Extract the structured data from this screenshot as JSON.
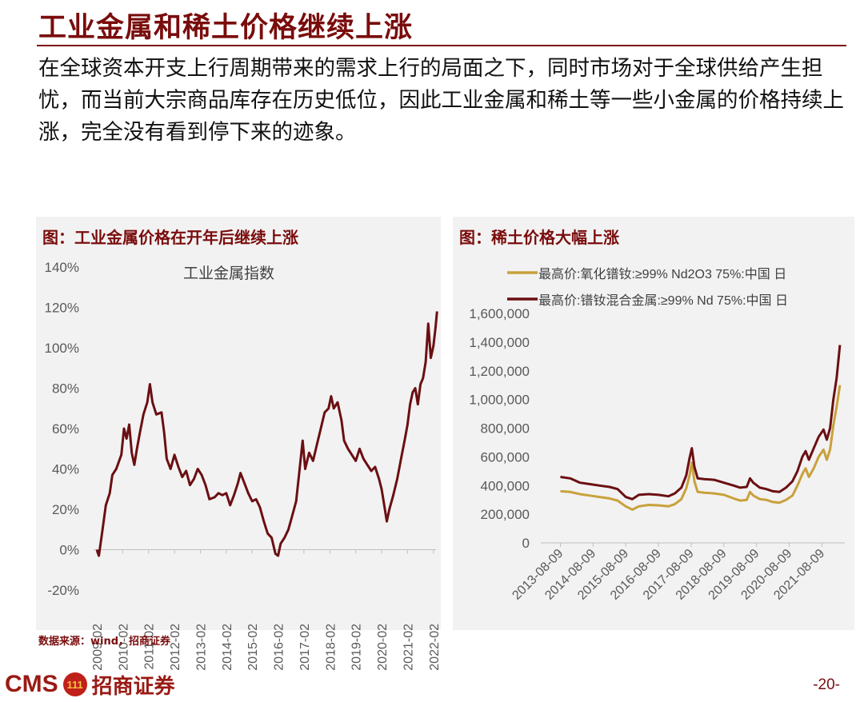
{
  "page": {
    "title": "工业金属和稀土价格继续上涨",
    "body": "在全球资本开支上行周期带来的需求上行的局面之下，同时市场对于全球供给产生担忧，而当前大宗商品库存在历史低位，因此工业金属和稀土等一些小金属的价格持续上涨，完全没有看到停下来的迹象。",
    "source": "数据来源：wind，招商证券",
    "page_number": "-20-"
  },
  "logo": {
    "cms": "CMS",
    "badge": "111",
    "cn": "招商证券"
  },
  "colors": {
    "accent": "#7a0c0c",
    "series_gold": "#c9a13b",
    "series_maroon": "#6b0f12",
    "panel_bg": "#f2f2f2"
  },
  "chart_data": [
    {
      "type": "line",
      "title": "图：工业金属价格在开年后继续上涨",
      "annotation": "工业金属指数",
      "x_ticks": [
        "2009-02",
        "2010-02",
        "2011-02",
        "2012-02",
        "2013-02",
        "2014-02",
        "2015-02",
        "2016-02",
        "2017-02",
        "2018-02",
        "2019-02",
        "2020-02",
        "2021-02",
        "2022-02"
      ],
      "y_ticks": [
        "140%",
        "120%",
        "100%",
        "80%",
        "60%",
        "40%",
        "20%",
        "0%",
        "-20%"
      ],
      "ylim": [
        -20,
        140
      ],
      "grid": false,
      "series": [
        {
          "points": [
            [
              2009.0,
              0
            ],
            [
              2009.08,
              -3
            ],
            [
              2009.2,
              8
            ],
            [
              2009.35,
              22
            ],
            [
              2009.5,
              28
            ],
            [
              2009.6,
              37
            ],
            [
              2009.75,
              40
            ],
            [
              2009.95,
              47
            ],
            [
              2010.05,
              60
            ],
            [
              2010.15,
              55
            ],
            [
              2010.25,
              62
            ],
            [
              2010.35,
              48
            ],
            [
              2010.45,
              42
            ],
            [
              2010.55,
              50
            ],
            [
              2010.65,
              57
            ],
            [
              2010.8,
              67
            ],
            [
              2010.95,
              73
            ],
            [
              2011.05,
              82
            ],
            [
              2011.15,
              73
            ],
            [
              2011.3,
              67
            ],
            [
              2011.5,
              68
            ],
            [
              2011.6,
              58
            ],
            [
              2011.7,
              45
            ],
            [
              2011.85,
              40
            ],
            [
              2012.0,
              47
            ],
            [
              2012.15,
              41
            ],
            [
              2012.3,
              36
            ],
            [
              2012.45,
              39
            ],
            [
              2012.6,
              32
            ],
            [
              2012.75,
              35
            ],
            [
              2012.9,
              40
            ],
            [
              2013.05,
              37
            ],
            [
              2013.2,
              32
            ],
            [
              2013.35,
              25
            ],
            [
              2013.55,
              26
            ],
            [
              2013.7,
              28
            ],
            [
              2013.85,
              27
            ],
            [
              2014.0,
              28
            ],
            [
              2014.15,
              22
            ],
            [
              2014.3,
              27
            ],
            [
              2014.45,
              33
            ],
            [
              2014.55,
              38
            ],
            [
              2014.7,
              33
            ],
            [
              2014.85,
              28
            ],
            [
              2015.0,
              24
            ],
            [
              2015.15,
              25
            ],
            [
              2015.3,
              21
            ],
            [
              2015.45,
              14
            ],
            [
              2015.6,
              8
            ],
            [
              2015.75,
              6
            ],
            [
              2015.9,
              -2
            ],
            [
              2016.0,
              -3
            ],
            [
              2016.1,
              3
            ],
            [
              2016.25,
              6
            ],
            [
              2016.4,
              10
            ],
            [
              2016.55,
              17
            ],
            [
              2016.7,
              24
            ],
            [
              2016.85,
              42
            ],
            [
              2016.95,
              54
            ],
            [
              2017.05,
              40
            ],
            [
              2017.2,
              48
            ],
            [
              2017.35,
              44
            ],
            [
              2017.5,
              52
            ],
            [
              2017.65,
              60
            ],
            [
              2017.8,
              68
            ],
            [
              2017.95,
              70
            ],
            [
              2018.05,
              76
            ],
            [
              2018.15,
              70
            ],
            [
              2018.3,
              73
            ],
            [
              2018.45,
              64
            ],
            [
              2018.55,
              54
            ],
            [
              2018.7,
              50
            ],
            [
              2018.85,
              47
            ],
            [
              2019.0,
              44
            ],
            [
              2019.15,
              50
            ],
            [
              2019.3,
              45
            ],
            [
              2019.45,
              42
            ],
            [
              2019.6,
              39
            ],
            [
              2019.75,
              41
            ],
            [
              2019.9,
              35
            ],
            [
              2020.0,
              30
            ],
            [
              2020.1,
              22
            ],
            [
              2020.2,
              14
            ],
            [
              2020.3,
              20
            ],
            [
              2020.45,
              27
            ],
            [
              2020.6,
              35
            ],
            [
              2020.75,
              45
            ],
            [
              2020.9,
              55
            ],
            [
              2021.0,
              62
            ],
            [
              2021.1,
              72
            ],
            [
              2021.2,
              78
            ],
            [
              2021.3,
              80
            ],
            [
              2021.4,
              72
            ],
            [
              2021.5,
              82
            ],
            [
              2021.6,
              85
            ],
            [
              2021.7,
              93
            ],
            [
              2021.8,
              112
            ],
            [
              2021.9,
              95
            ],
            [
              2022.0,
              101
            ],
            [
              2022.08,
              110
            ],
            [
              2022.14,
              118
            ]
          ]
        }
      ]
    },
    {
      "type": "line",
      "title": "图：稀土价格大幅上涨",
      "x_ticks": [
        "2013-08-09",
        "2014-08-09",
        "2015-08-09",
        "2016-08-09",
        "2017-08-09",
        "2018-08-09",
        "2019-08-09",
        "2020-08-09",
        "2021-08-09"
      ],
      "y_ticks": [
        "1,600,000",
        "1,400,000",
        "1,200,000",
        "1,000,000",
        "800,000",
        "600,000",
        "400,000",
        "200,000",
        "0"
      ],
      "ylim": [
        0,
        1600000
      ],
      "grid": false,
      "legend": "top",
      "series": [
        {
          "name": "最高价:氧化镨钕:≥99% Nd2O3 75%:中国 日",
          "color": "#c9a13b",
          "points": [
            [
              2013.6,
              360000
            ],
            [
              2013.9,
              355000
            ],
            [
              2014.2,
              340000
            ],
            [
              2014.5,
              330000
            ],
            [
              2014.8,
              320000
            ],
            [
              2015.1,
              310000
            ],
            [
              2015.35,
              295000
            ],
            [
              2015.6,
              255000
            ],
            [
              2015.8,
              232000
            ],
            [
              2016.0,
              255000
            ],
            [
              2016.3,
              265000
            ],
            [
              2016.6,
              262000
            ],
            [
              2016.9,
              255000
            ],
            [
              2017.1,
              270000
            ],
            [
              2017.3,
              305000
            ],
            [
              2017.45,
              380000
            ],
            [
              2017.55,
              470000
            ],
            [
              2017.62,
              560000
            ],
            [
              2017.7,
              430000
            ],
            [
              2017.8,
              355000
            ],
            [
              2018.0,
              350000
            ],
            [
              2018.3,
              345000
            ],
            [
              2018.6,
              335000
            ],
            [
              2018.9,
              310000
            ],
            [
              2019.1,
              295000
            ],
            [
              2019.3,
              300000
            ],
            [
              2019.4,
              355000
            ],
            [
              2019.5,
              330000
            ],
            [
              2019.7,
              305000
            ],
            [
              2019.9,
              300000
            ],
            [
              2020.1,
              285000
            ],
            [
              2020.3,
              280000
            ],
            [
              2020.5,
              300000
            ],
            [
              2020.7,
              330000
            ],
            [
              2020.85,
              400000
            ],
            [
              2021.0,
              480000
            ],
            [
              2021.1,
              520000
            ],
            [
              2021.2,
              460000
            ],
            [
              2021.35,
              520000
            ],
            [
              2021.5,
              600000
            ],
            [
              2021.65,
              650000
            ],
            [
              2021.75,
              580000
            ],
            [
              2021.85,
              650000
            ],
            [
              2021.95,
              820000
            ],
            [
              2022.05,
              950000
            ],
            [
              2022.15,
              1100000
            ]
          ]
        },
        {
          "name": "最高价:镨钕混合金属:≥99% Nd 75%:中国 日",
          "color": "#6b0f12",
          "points": [
            [
              2013.6,
              460000
            ],
            [
              2013.9,
              450000
            ],
            [
              2014.2,
              420000
            ],
            [
              2014.5,
              410000
            ],
            [
              2014.8,
              400000
            ],
            [
              2015.1,
              390000
            ],
            [
              2015.35,
              375000
            ],
            [
              2015.6,
              320000
            ],
            [
              2015.8,
              305000
            ],
            [
              2016.0,
              335000
            ],
            [
              2016.3,
              340000
            ],
            [
              2016.6,
              335000
            ],
            [
              2016.9,
              325000
            ],
            [
              2017.1,
              345000
            ],
            [
              2017.3,
              385000
            ],
            [
              2017.45,
              470000
            ],
            [
              2017.55,
              590000
            ],
            [
              2017.62,
              660000
            ],
            [
              2017.7,
              530000
            ],
            [
              2017.8,
              450000
            ],
            [
              2018.0,
              445000
            ],
            [
              2018.3,
              440000
            ],
            [
              2018.6,
              420000
            ],
            [
              2018.9,
              400000
            ],
            [
              2019.1,
              385000
            ],
            [
              2019.3,
              390000
            ],
            [
              2019.4,
              450000
            ],
            [
              2019.5,
              420000
            ],
            [
              2019.7,
              385000
            ],
            [
              2019.9,
              375000
            ],
            [
              2020.1,
              360000
            ],
            [
              2020.3,
              355000
            ],
            [
              2020.5,
              385000
            ],
            [
              2020.7,
              430000
            ],
            [
              2020.85,
              500000
            ],
            [
              2021.0,
              600000
            ],
            [
              2021.1,
              640000
            ],
            [
              2021.2,
              580000
            ],
            [
              2021.35,
              660000
            ],
            [
              2021.5,
              740000
            ],
            [
              2021.65,
              790000
            ],
            [
              2021.75,
              720000
            ],
            [
              2021.85,
              800000
            ],
            [
              2021.95,
              1000000
            ],
            [
              2022.05,
              1150000
            ],
            [
              2022.15,
              1380000
            ]
          ]
        }
      ]
    }
  ]
}
